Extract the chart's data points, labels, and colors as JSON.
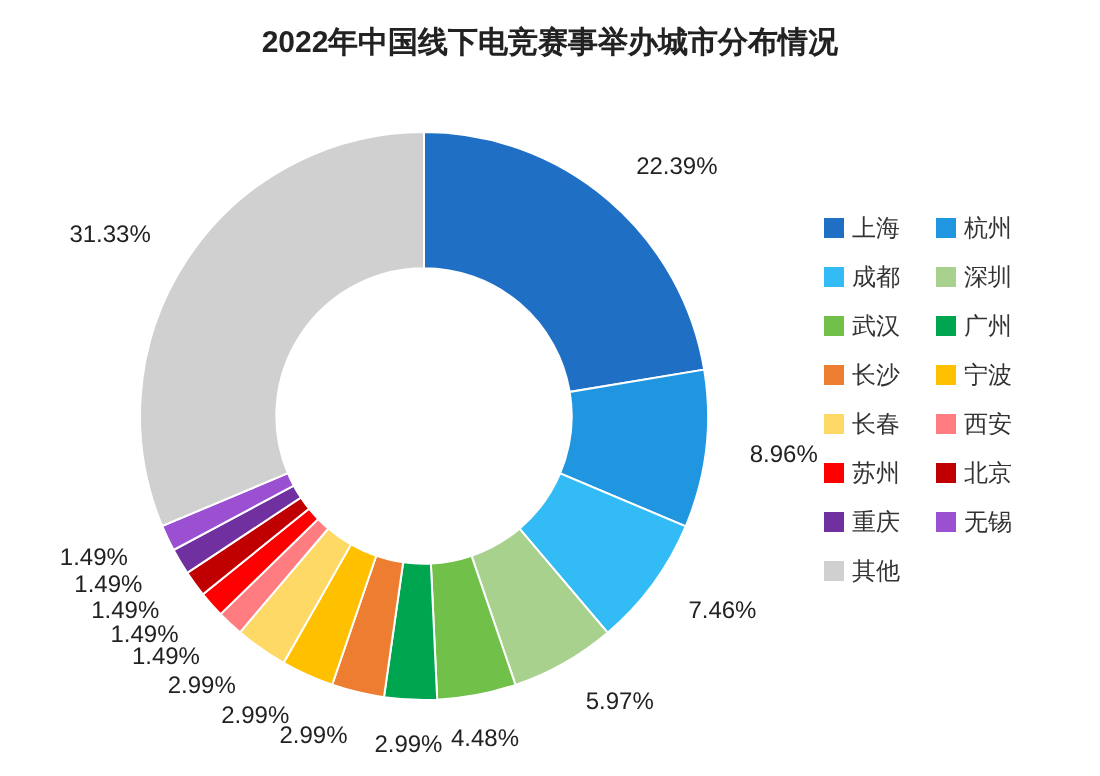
{
  "chart_data": {
    "type": "donut",
    "title": "2022年中国线下电竞赛事举办城市分布情况",
    "categories": [
      "上海",
      "杭州",
      "成都",
      "深圳",
      "武汉",
      "广州",
      "长沙",
      "宁波",
      "长春",
      "西安",
      "苏州",
      "北京",
      "重庆",
      "无锡",
      "其他"
    ],
    "values": [
      22.39,
      8.96,
      7.46,
      5.97,
      4.48,
      2.99,
      2.99,
      2.99,
      2.99,
      1.49,
      1.49,
      1.49,
      1.49,
      1.49,
      31.33
    ],
    "value_labels": [
      "22.39%",
      "8.96%",
      "7.46%",
      "5.97%",
      "4.48%",
      "2.99%",
      "2.99%",
      "2.99%",
      "2.99%",
      "1.49%",
      "1.49%",
      "1.49%",
      "1.49%",
      "1.49%",
      "31.33%"
    ],
    "colors": [
      "#1f6fc5",
      "#2196e0",
      "#33bbf5",
      "#a9d18e",
      "#70c04a",
      "#00a550",
      "#ed7d31",
      "#ffc000",
      "#ffd966",
      "#ff7c80",
      "#ff0000",
      "#c00000",
      "#7030a0",
      "#9b4fd1",
      "#d0d0d0"
    ],
    "legend": "right"
  }
}
